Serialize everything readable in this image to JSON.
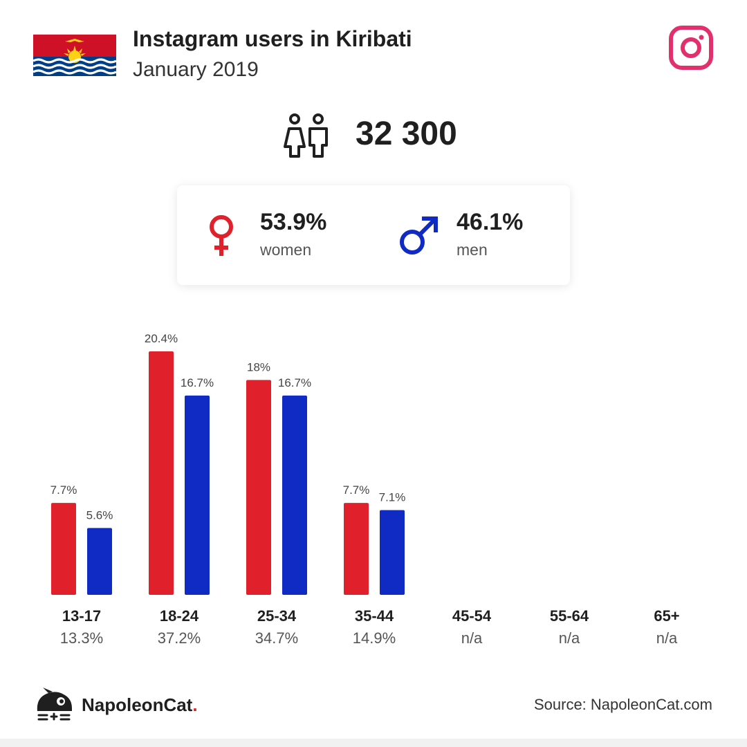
{
  "header": {
    "title": "Instagram users in Kiribati",
    "subtitle": "January 2019"
  },
  "total": {
    "value": "32 300"
  },
  "gender": {
    "women": {
      "percent": "53.9%",
      "label": "women",
      "color": "#e0202a"
    },
    "men": {
      "percent": "46.1%",
      "label": "men",
      "color": "#0f2bc4"
    }
  },
  "chart_data": {
    "type": "bar",
    "categories": [
      "13-17",
      "18-24",
      "25-34",
      "35-44",
      "45-54",
      "55-64",
      "65+"
    ],
    "category_share": [
      "13.3%",
      "37.2%",
      "34.7%",
      "14.9%",
      "n/a",
      "n/a",
      "n/a"
    ],
    "series": [
      {
        "values": [
          7.7,
          20.4,
          18,
          7.7,
          null,
          null,
          null
        ],
        "labels": [
          "7.7%",
          "20.4%",
          "18%",
          "7.7%",
          "",
          "",
          ""
        ],
        "color": "#e0202a"
      },
      {
        "values": [
          5.6,
          16.7,
          16.7,
          7.1,
          null,
          null,
          null
        ],
        "labels": [
          "5.6%",
          "16.7%",
          "16.7%",
          "7.1%",
          "",
          "",
          ""
        ],
        "color": "#0f2bc4"
      }
    ],
    "ylim": [
      0,
      20.4
    ],
    "grid": false
  },
  "footer": {
    "brand_main": "NapoleonCat",
    "brand_dot": ".",
    "source": "Source: NapoleonCat.com"
  }
}
